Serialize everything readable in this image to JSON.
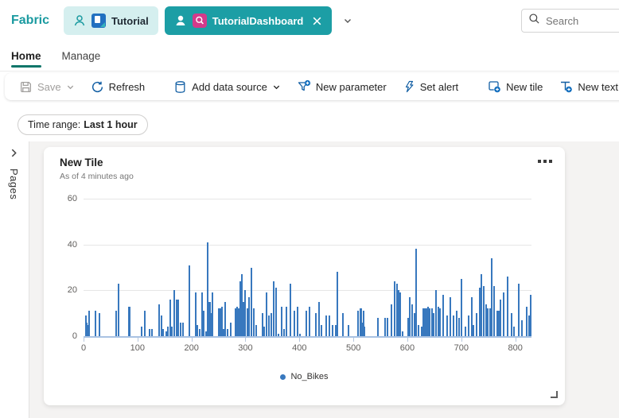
{
  "topbar": {
    "brand": "Fabric",
    "tabs": [
      {
        "label": "Tutorial",
        "active": false
      },
      {
        "label": "TutorialDashboard",
        "active": true
      }
    ],
    "search": {
      "placeholder": "Search"
    }
  },
  "menubar": {
    "items": [
      {
        "label": "Home",
        "active": true
      },
      {
        "label": "Manage",
        "active": false
      }
    ]
  },
  "toolbar": {
    "save": "Save",
    "refresh": "Refresh",
    "add_data_source": "Add data source",
    "new_parameter": "New parameter",
    "set_alert": "Set alert",
    "new_tile": "New tile",
    "new_text_tile": "New text tile"
  },
  "filter_bar": {
    "time_range_label": "Time range:",
    "time_range_value": "Last 1 hour"
  },
  "sidebar": {
    "label": "Pages"
  },
  "tile": {
    "title": "New Tile",
    "subtitle": "As of 4 minutes ago"
  },
  "colors": {
    "accent_teal": "#1c9ea5",
    "icon_blue": "#115ea3",
    "bar_blue": "#3878be"
  },
  "chart_data": {
    "type": "bar",
    "title": "",
    "xlabel": "",
    "ylabel": "",
    "xlim": [
      0,
      830
    ],
    "ylim": [
      0,
      60
    ],
    "xticks": [
      0,
      100,
      200,
      300,
      400,
      500,
      600,
      700,
      800
    ],
    "yticks": [
      0,
      20,
      40,
      60
    ],
    "grid": true,
    "legend_position": "bottom",
    "series": [
      {
        "name": "No_Bikes",
        "color": "#3878be",
        "points": [
          [
            4,
            9
          ],
          [
            6,
            6
          ],
          [
            8,
            5
          ],
          [
            11,
            11
          ],
          [
            22,
            11
          ],
          [
            30,
            10
          ],
          [
            60,
            11
          ],
          [
            65,
            23
          ],
          [
            84,
            13
          ],
          [
            86,
            13
          ],
          [
            108,
            4
          ],
          [
            113,
            11
          ],
          [
            123,
            3
          ],
          [
            127,
            3
          ],
          [
            140,
            14
          ],
          [
            144,
            9
          ],
          [
            148,
            3
          ],
          [
            153,
            2
          ],
          [
            157,
            4
          ],
          [
            160,
            16
          ],
          [
            164,
            4
          ],
          [
            168,
            20
          ],
          [
            172,
            16
          ],
          [
            176,
            16
          ],
          [
            180,
            6
          ],
          [
            184,
            6
          ],
          [
            196,
            31
          ],
          [
            208,
            19
          ],
          [
            211,
            5
          ],
          [
            215,
            3
          ],
          [
            219,
            19
          ],
          [
            222,
            11
          ],
          [
            227,
            2
          ],
          [
            230,
            41
          ],
          [
            232,
            15
          ],
          [
            234,
            15
          ],
          [
            236,
            10
          ],
          [
            239,
            19
          ],
          [
            250,
            12
          ],
          [
            253,
            12
          ],
          [
            256,
            13
          ],
          [
            259,
            3
          ],
          [
            263,
            15
          ],
          [
            267,
            3
          ],
          [
            272,
            6
          ],
          [
            281,
            12
          ],
          [
            284,
            13
          ],
          [
            288,
            12
          ],
          [
            291,
            24
          ],
          [
            294,
            27
          ],
          [
            297,
            15
          ],
          [
            300,
            20
          ],
          [
            304,
            12
          ],
          [
            307,
            17
          ],
          [
            311,
            30
          ],
          [
            315,
            12
          ],
          [
            320,
            5
          ],
          [
            331,
            10
          ],
          [
            335,
            4
          ],
          [
            339,
            19
          ],
          [
            344,
            9
          ],
          [
            348,
            10
          ],
          [
            353,
            24
          ],
          [
            357,
            21
          ],
          [
            361,
            1
          ],
          [
            367,
            13
          ],
          [
            372,
            3
          ],
          [
            376,
            13
          ],
          [
            383,
            23
          ],
          [
            391,
            11
          ],
          [
            396,
            13
          ],
          [
            401,
            1
          ],
          [
            413,
            11
          ],
          [
            419,
            13
          ],
          [
            431,
            10
          ],
          [
            437,
            15
          ],
          [
            441,
            5
          ],
          [
            449,
            9
          ],
          [
            456,
            9
          ],
          [
            461,
            5
          ],
          [
            467,
            5
          ],
          [
            471,
            28
          ],
          [
            481,
            10
          ],
          [
            491,
            5
          ],
          [
            509,
            11
          ],
          [
            513,
            12
          ],
          [
            515,
            12
          ],
          [
            517,
            6
          ],
          [
            519,
            11
          ],
          [
            521,
            4
          ],
          [
            546,
            8
          ],
          [
            559,
            8
          ],
          [
            563,
            8
          ],
          [
            571,
            14
          ],
          [
            577,
            24
          ],
          [
            581,
            23
          ],
          [
            584,
            20
          ],
          [
            587,
            19
          ],
          [
            591,
            2
          ],
          [
            601,
            8
          ],
          [
            605,
            17
          ],
          [
            609,
            14
          ],
          [
            613,
            10
          ],
          [
            616,
            38
          ],
          [
            621,
            5
          ],
          [
            626,
            4
          ],
          [
            629,
            12
          ],
          [
            633,
            12
          ],
          [
            636,
            12
          ],
          [
            639,
            13
          ],
          [
            642,
            12
          ],
          [
            646,
            12
          ],
          [
            649,
            10
          ],
          [
            653,
            20
          ],
          [
            657,
            13
          ],
          [
            661,
            12
          ],
          [
            666,
            18
          ],
          [
            673,
            9
          ],
          [
            679,
            17
          ],
          [
            685,
            9
          ],
          [
            691,
            11
          ],
          [
            696,
            8
          ],
          [
            701,
            25
          ],
          [
            707,
            4
          ],
          [
            713,
            9
          ],
          [
            719,
            17
          ],
          [
            723,
            5
          ],
          [
            729,
            10
          ],
          [
            734,
            21
          ],
          [
            737,
            27
          ],
          [
            741,
            22
          ],
          [
            746,
            14
          ],
          [
            749,
            12
          ],
          [
            753,
            12
          ],
          [
            756,
            34
          ],
          [
            761,
            22
          ],
          [
            766,
            11
          ],
          [
            769,
            11
          ],
          [
            773,
            16
          ],
          [
            779,
            19
          ],
          [
            786,
            26
          ],
          [
            793,
            10
          ],
          [
            798,
            4
          ],
          [
            806,
            23
          ],
          [
            813,
            7
          ],
          [
            821,
            13
          ],
          [
            826,
            9
          ],
          [
            829,
            18
          ]
        ]
      }
    ]
  }
}
